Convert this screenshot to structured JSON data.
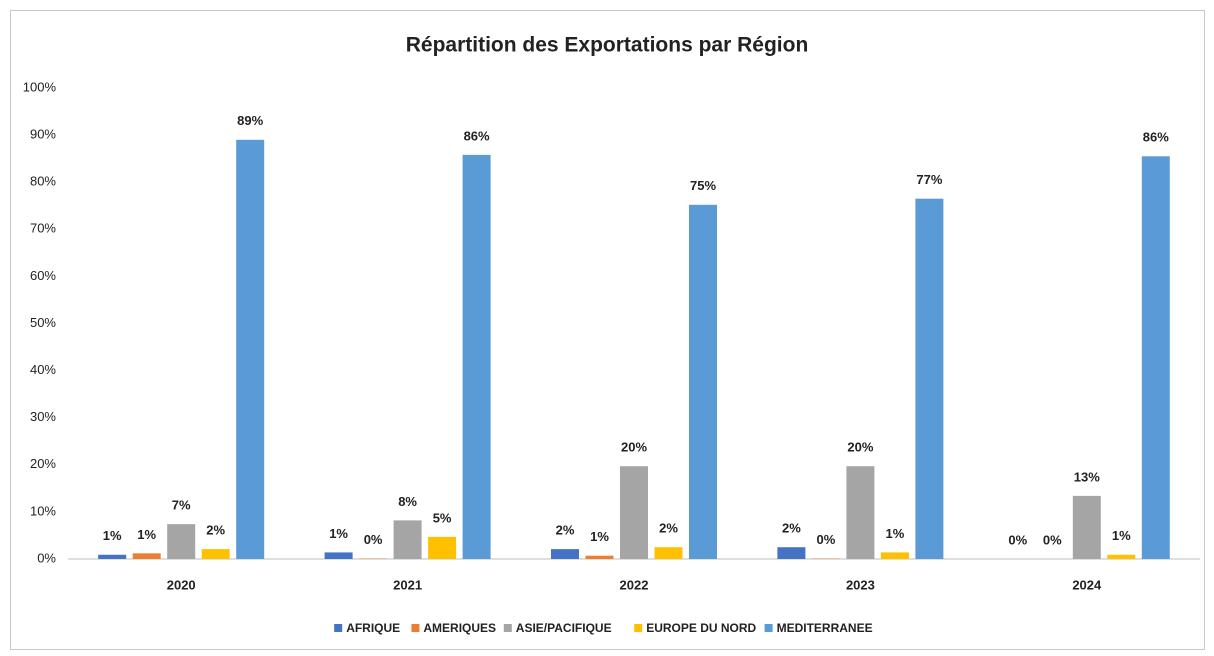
{
  "chart_data": {
    "type": "bar",
    "title": "Répartition des Exportations par Région",
    "categories": [
      "2020",
      "2021",
      "2022",
      "2023",
      "2024"
    ],
    "series": [
      {
        "name": "AFRIQUE",
        "color": "#4472c4",
        "values": [
          0.9,
          1.4,
          2.1,
          2.5,
          0
        ],
        "value_labels": [
          "1%",
          "1%",
          "2%",
          "2%",
          "0%"
        ]
      },
      {
        "name": "AMERIQUES",
        "color": "#ed7d31",
        "values": [
          1.2,
          0.1,
          0.7,
          0.1,
          0
        ],
        "value_labels": [
          "1%",
          "0%",
          "1%",
          "0%",
          "0%"
        ]
      },
      {
        "name": "ASIE/PACIFIQUE",
        "color": "#a5a5a5",
        "values": [
          7.4,
          8.2,
          19.7,
          19.7,
          13.4
        ],
        "value_labels": [
          "7%",
          "8%",
          "20%",
          "20%",
          "13%"
        ]
      },
      {
        "name": "EUROPE DU NORD",
        "color": "#ffc000",
        "values": [
          2.1,
          4.7,
          2.5,
          1.4,
          0.9
        ],
        "value_labels": [
          "2%",
          "5%",
          "2%",
          "1%",
          "1%"
        ]
      },
      {
        "name": "MEDITERRANEE",
        "color": "#5b9bd5",
        "values": [
          89.0,
          85.8,
          75.2,
          76.5,
          85.5
        ],
        "value_labels": [
          "89%",
          "86%",
          "75%",
          "77%",
          "86%"
        ]
      }
    ],
    "ylim": [
      0,
      100
    ],
    "yticks": [
      {
        "value": 0,
        "label": "0%"
      },
      {
        "value": 10,
        "label": "10%"
      },
      {
        "value": 20,
        "label": "20%"
      },
      {
        "value": 30,
        "label": "30%"
      },
      {
        "value": 40,
        "label": "40%"
      },
      {
        "value": 50,
        "label": "50%"
      },
      {
        "value": 60,
        "label": "60%"
      },
      {
        "value": 70,
        "label": "70%"
      },
      {
        "value": 80,
        "label": "80%"
      },
      {
        "value": 90,
        "label": "90%"
      },
      {
        "value": 100,
        "label": "100%"
      }
    ],
    "grid": false,
    "legend": "bottom"
  }
}
